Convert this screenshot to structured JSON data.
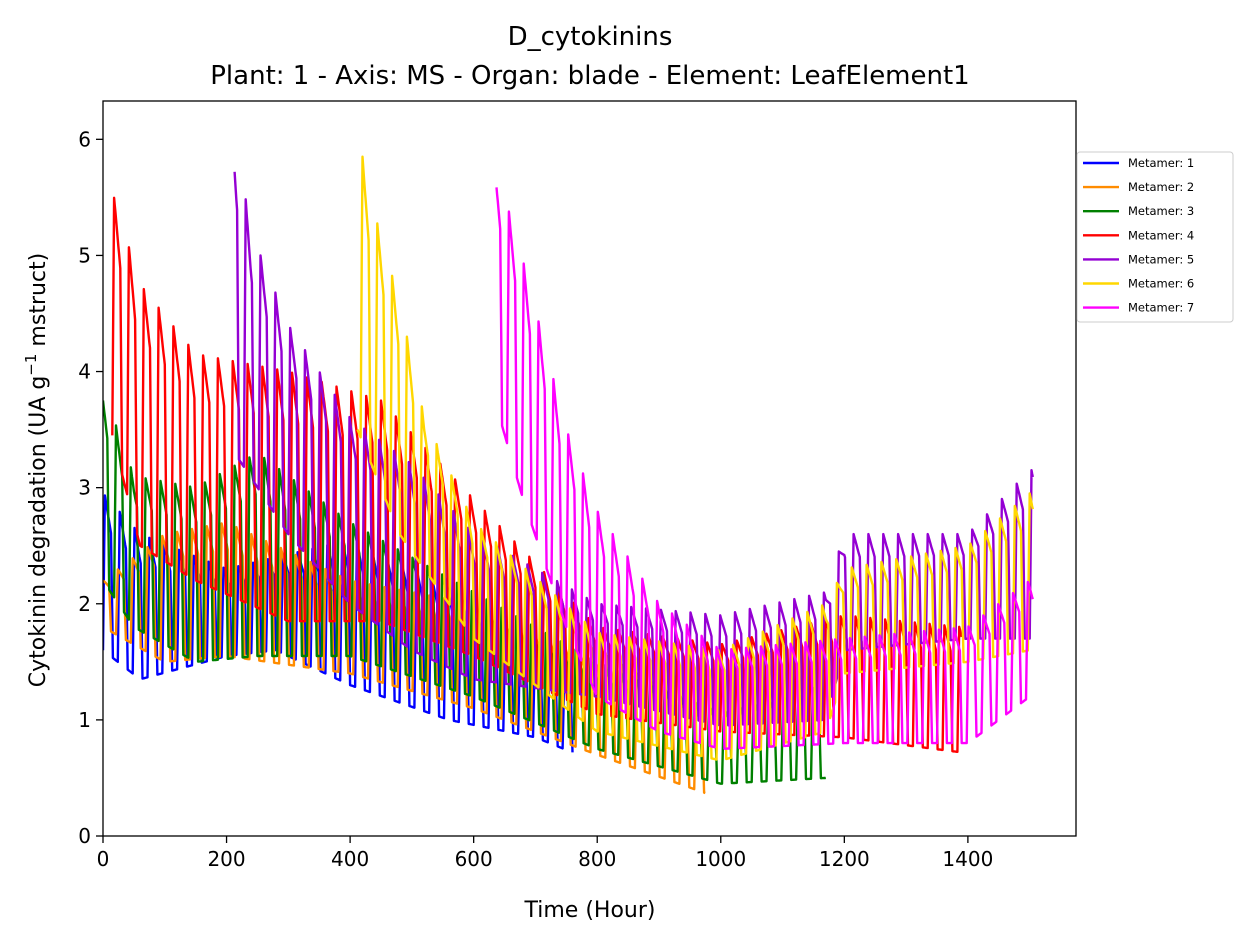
{
  "chart_data": {
    "type": "line",
    "title": "D_cytokinins",
    "subtitle": "Plant: 1 - Axis: MS - Organ: blade - Element: LeafElement1",
    "xlabel": "Time (Hour)",
    "ylabel_main": "Cytokinin degradation (UA g",
    "ylabel_sup": "−1",
    "ylabel_tail": " mstruct)",
    "xlim": [
      0,
      1575
    ],
    "ylim": [
      0,
      6.33
    ],
    "xticks": [
      0,
      200,
      400,
      600,
      800,
      1000,
      1200,
      1400
    ],
    "yticks": [
      0,
      1,
      2,
      3,
      4,
      5,
      6
    ],
    "legend_position": "right, outside, upper",
    "cycle_hours": 24,
    "series": [
      {
        "name": "Metamer: 1",
        "color": "#0000ff",
        "start": 0,
        "end": 760,
        "high": [
          [
            0,
            2.95
          ],
          [
            60,
            2.6
          ],
          [
            200,
            2.3
          ],
          [
            400,
            2.55
          ],
          [
            560,
            2.2
          ],
          [
            700,
            1.55
          ],
          [
            760,
            1.4
          ]
        ],
        "low": [
          [
            0,
            1.6
          ],
          [
            60,
            1.35
          ],
          [
            200,
            1.55
          ],
          [
            280,
            1.6
          ],
          [
            400,
            1.3
          ],
          [
            560,
            1.0
          ],
          [
            700,
            0.85
          ],
          [
            760,
            0.72
          ]
        ]
      },
      {
        "name": "Metamer: 2",
        "color": "#ff8c00",
        "start": 0,
        "end": 975,
        "high": [
          [
            0,
            2.2
          ],
          [
            100,
            2.6
          ],
          [
            200,
            2.7
          ],
          [
            400,
            2.2
          ],
          [
            600,
            2.0
          ],
          [
            800,
            1.6
          ],
          [
            975,
            1.05
          ]
        ],
        "low": [
          [
            0,
            1.8
          ],
          [
            100,
            1.5
          ],
          [
            200,
            1.55
          ],
          [
            400,
            1.4
          ],
          [
            600,
            1.1
          ],
          [
            800,
            0.7
          ],
          [
            975,
            0.37
          ]
        ]
      },
      {
        "name": "Metamer: 3",
        "color": "#008000",
        "start": 0,
        "end": 1170,
        "high": [
          [
            0,
            3.85
          ],
          [
            50,
            3.1
          ],
          [
            150,
            3.0
          ],
          [
            250,
            3.3
          ],
          [
            400,
            2.7
          ],
          [
            600,
            2.1
          ],
          [
            800,
            1.5
          ],
          [
            1000,
            1.1
          ],
          [
            1170,
            1.3
          ]
        ],
        "low": [
          [
            0,
            2.2
          ],
          [
            50,
            1.8
          ],
          [
            150,
            1.5
          ],
          [
            250,
            1.55
          ],
          [
            400,
            1.55
          ],
          [
            600,
            1.2
          ],
          [
            800,
            0.75
          ],
          [
            1000,
            0.45
          ],
          [
            1170,
            0.5
          ]
        ]
      },
      {
        "name": "Metamer: 4",
        "color": "#ff0000",
        "start": 15,
        "end": 1390,
        "high": [
          [
            15,
            5.55
          ],
          [
            60,
            4.75
          ],
          [
            150,
            4.15
          ],
          [
            300,
            4.0
          ],
          [
            450,
            3.75
          ],
          [
            600,
            2.9
          ],
          [
            800,
            1.8
          ],
          [
            1000,
            1.65
          ],
          [
            1200,
            1.9
          ],
          [
            1390,
            1.8
          ]
        ],
        "low": [
          [
            15,
            3.45
          ],
          [
            60,
            2.5
          ],
          [
            150,
            2.2
          ],
          [
            300,
            1.85
          ],
          [
            450,
            1.85
          ],
          [
            600,
            1.55
          ],
          [
            800,
            1.05
          ],
          [
            1000,
            0.9
          ],
          [
            1200,
            0.85
          ],
          [
            1390,
            0.72
          ]
        ]
      },
      {
        "name": "Metamer: 5",
        "color": "#9400d3",
        "start": 213,
        "end": 1505,
        "high": [
          [
            213,
            6.05
          ],
          [
            240,
            5.2
          ],
          [
            300,
            4.4
          ],
          [
            400,
            3.6
          ],
          [
            500,
            3.2
          ],
          [
            600,
            2.6
          ],
          [
            800,
            2.0
          ],
          [
            1000,
            1.9
          ],
          [
            1170,
            2.1
          ],
          [
            1200,
            2.6
          ],
          [
            1400,
            2.6
          ],
          [
            1500,
            3.15
          ]
        ],
        "low": [
          [
            213,
            3.3
          ],
          [
            300,
            2.6
          ],
          [
            400,
            2.0
          ],
          [
            500,
            1.6
          ],
          [
            600,
            1.35
          ],
          [
            800,
            1.2
          ],
          [
            1000,
            0.95
          ],
          [
            1170,
            1.0
          ],
          [
            1200,
            1.6
          ],
          [
            1400,
            1.7
          ],
          [
            1500,
            1.7
          ]
        ]
      },
      {
        "name": "Metamer: 6",
        "color": "#ffd700",
        "start": 412,
        "end": 1505,
        "high": [
          [
            412,
            6.05
          ],
          [
            440,
            5.35
          ],
          [
            480,
            4.6
          ],
          [
            520,
            3.6
          ],
          [
            600,
            2.7
          ],
          [
            800,
            1.75
          ],
          [
            1000,
            1.6
          ],
          [
            1170,
            2.0
          ],
          [
            1200,
            2.3
          ],
          [
            1400,
            2.5
          ],
          [
            1500,
            2.95
          ]
        ],
        "low": [
          [
            412,
            3.5
          ],
          [
            480,
            2.6
          ],
          [
            600,
            1.7
          ],
          [
            800,
            0.9
          ],
          [
            1000,
            0.65
          ],
          [
            1170,
            0.9
          ],
          [
            1200,
            1.4
          ],
          [
            1400,
            1.5
          ],
          [
            1500,
            1.6
          ]
        ]
      },
      {
        "name": "Metamer: 7",
        "color": "#ff00ff",
        "start": 637,
        "end": 1505,
        "high": [
          [
            637,
            5.75
          ],
          [
            680,
            4.95
          ],
          [
            750,
            3.5
          ],
          [
            800,
            2.8
          ],
          [
            900,
            2.0
          ],
          [
            1000,
            1.6
          ],
          [
            1200,
            1.7
          ],
          [
            1400,
            1.8
          ],
          [
            1500,
            2.2
          ]
        ],
        "low": [
          [
            637,
            3.7
          ],
          [
            680,
            2.9
          ],
          [
            750,
            1.8
          ],
          [
            800,
            1.2
          ],
          [
            900,
            0.9
          ],
          [
            1000,
            0.75
          ],
          [
            1200,
            0.8
          ],
          [
            1400,
            0.8
          ],
          [
            1500,
            1.2
          ]
        ]
      }
    ]
  }
}
